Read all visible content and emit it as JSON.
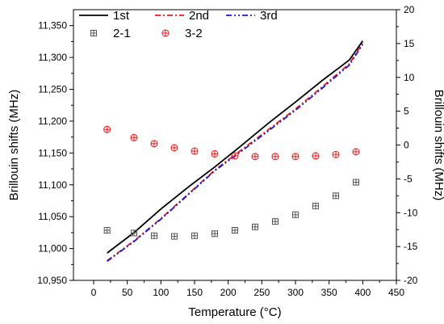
{
  "chart_data": {
    "type": "line",
    "xlabel": "Temperature (°C)",
    "ylabel_left": "Brillouin shifts (MHz)",
    "ylabel_right": "Brillouin shifts (MHz)",
    "xlim": [
      -30,
      450
    ],
    "xticks": [
      0,
      50,
      100,
      150,
      200,
      250,
      300,
      350,
      400,
      450
    ],
    "ylim_left": [
      10950,
      11375
    ],
    "yticks_left": [
      10950,
      11000,
      11050,
      11100,
      11150,
      11200,
      11250,
      11300,
      11350
    ],
    "ylim_right": [
      -20,
      20
    ],
    "yticks_right": [
      -20,
      -15,
      -10,
      -5,
      0,
      5,
      10,
      15,
      20
    ],
    "grid": false,
    "legend_position": "top-left",
    "series": [
      {
        "name": "1st",
        "axis": "left",
        "style": "line",
        "color": "#000000",
        "dash": "",
        "x": [
          20,
          60,
          100,
          140,
          180,
          220,
          260,
          300,
          340,
          380,
          400
        ],
        "y": [
          10993,
          11025,
          11062,
          11096,
          11128,
          11162,
          11197,
          11230,
          11264,
          11296,
          11326
        ]
      },
      {
        "name": "2nd",
        "axis": "left",
        "style": "line",
        "color": "#e41a1c",
        "dash": "7,3,2,3",
        "x": [
          20,
          60,
          100,
          140,
          180,
          220,
          260,
          300,
          340,
          380,
          400
        ],
        "y": [
          10981,
          11012,
          11047,
          11085,
          11123,
          11155,
          11187,
          11219,
          11254,
          11290,
          11323
        ]
      },
      {
        "name": "3rd",
        "axis": "left",
        "style": "line",
        "color": "#1a1ad6",
        "dash": "7,3,2,3,2,3",
        "x": [
          20,
          60,
          100,
          140,
          180,
          220,
          260,
          300,
          340,
          380,
          400
        ],
        "y": [
          10980,
          11011,
          11046,
          11084,
          11122,
          11153,
          11185,
          11217,
          11252,
          11288,
          11321
        ]
      },
      {
        "name": "2-1",
        "axis": "right",
        "style": "marker",
        "marker": "boxed-cross",
        "color": "#555555",
        "x": [
          20,
          60,
          90,
          120,
          150,
          180,
          210,
          240,
          270,
          300,
          330,
          360,
          390
        ],
        "y": [
          -12.6,
          -13.0,
          -13.4,
          -13.5,
          -13.4,
          -13.1,
          -12.6,
          -12.1,
          -11.3,
          -10.3,
          -9.0,
          -7.5,
          -5.5
        ]
      },
      {
        "name": "3-2",
        "axis": "right",
        "style": "marker",
        "marker": "circle-cross",
        "color": "#e41a1c",
        "x": [
          20,
          60,
          90,
          120,
          150,
          180,
          210,
          240,
          270,
          300,
          330,
          360,
          390
        ],
        "y": [
          2.3,
          1.1,
          0.2,
          -0.4,
          -0.9,
          -1.3,
          -1.6,
          -1.7,
          -1.7,
          -1.7,
          -1.6,
          -1.4,
          -1.0
        ]
      }
    ]
  }
}
